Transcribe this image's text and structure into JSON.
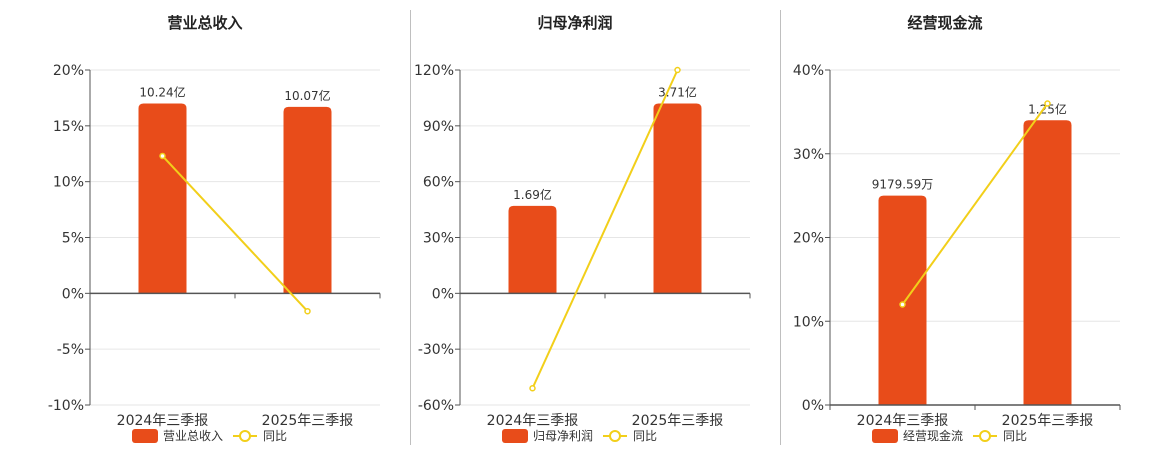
{
  "colors": {
    "bar": "#e84c1a",
    "line": "#f2cf1a",
    "axis": "#555555",
    "grid": "#e6e6e6"
  },
  "chart_data": [
    {
      "type": "bar",
      "title": "营业总收入",
      "categories": [
        "2024年三季报",
        "2025年三季报"
      ],
      "series": [
        {
          "name": "营业总收入",
          "type": "bar",
          "values": [
            17,
            16.7
          ],
          "data_labels": [
            "10.24亿",
            "10.07亿"
          ]
        },
        {
          "name": "同比",
          "type": "line",
          "values": [
            12.3,
            -1.6
          ]
        }
      ],
      "y_ticks": [
        "20%",
        "15%",
        "10%",
        "5%",
        "0%",
        "-5%",
        "-10%"
      ],
      "ylim": [
        -10,
        20
      ],
      "ytick_step": 5,
      "grid": true,
      "legend": "bottom"
    },
    {
      "type": "bar",
      "title": "归母净利润",
      "categories": [
        "2024年三季报",
        "2025年三季报"
      ],
      "series": [
        {
          "name": "归母净利润",
          "type": "bar",
          "values": [
            47,
            102
          ],
          "data_labels": [
            "1.69亿",
            "3.71亿"
          ]
        },
        {
          "name": "同比",
          "type": "line",
          "values": [
            -51,
            120
          ]
        }
      ],
      "y_ticks": [
        "120%",
        "90%",
        "60%",
        "30%",
        "0%",
        "-30%",
        "-60%"
      ],
      "ylim": [
        -60,
        120
      ],
      "ytick_step": 30,
      "grid": true,
      "legend": "bottom"
    },
    {
      "type": "bar",
      "title": "经营现金流",
      "categories": [
        "2024年三季报",
        "2025年三季报"
      ],
      "series": [
        {
          "name": "经营现金流",
          "type": "bar",
          "values": [
            25,
            34
          ],
          "data_labels": [
            "9179.59万",
            "1.25亿"
          ]
        },
        {
          "name": "同比",
          "type": "line",
          "values": [
            12,
            36
          ]
        }
      ],
      "y_ticks": [
        "40%",
        "30%",
        "20%",
        "10%",
        "0%"
      ],
      "ylim": [
        0,
        40
      ],
      "ytick_step": 10,
      "grid": true,
      "legend": "bottom"
    }
  ]
}
